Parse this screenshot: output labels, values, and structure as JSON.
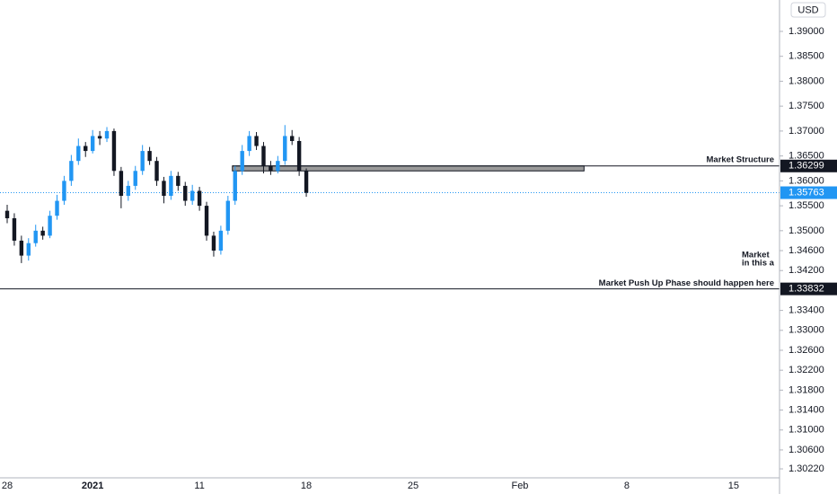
{
  "chart_data": {
    "type": "candlestick",
    "currency": "USD",
    "up_color": "#2196f3",
    "down_color": "#131722",
    "ylim": [
      1.3004,
      1.3963
    ],
    "yticks": [
      {
        "value": 1.39,
        "label": "1.39000"
      },
      {
        "value": 1.385,
        "label": "1.38500"
      },
      {
        "value": 1.38,
        "label": "1.38000"
      },
      {
        "value": 1.375,
        "label": "1.37500"
      },
      {
        "value": 1.37,
        "label": "1.37000"
      },
      {
        "value": 1.365,
        "label": "1.36500"
      },
      {
        "value": 1.36,
        "label": "1.36000"
      },
      {
        "value": 1.355,
        "label": "1.35500"
      },
      {
        "value": 1.35,
        "label": "1.35000"
      },
      {
        "value": 1.346,
        "label": "1.34600"
      },
      {
        "value": 1.342,
        "label": "1.34200"
      },
      {
        "value": 1.334,
        "label": "1.33400"
      },
      {
        "value": 1.33,
        "label": "1.33000"
      },
      {
        "value": 1.326,
        "label": "1.32600"
      },
      {
        "value": 1.322,
        "label": "1.32200"
      },
      {
        "value": 1.318,
        "label": "1.31800"
      },
      {
        "value": 1.314,
        "label": "1.31400"
      },
      {
        "value": 1.31,
        "label": "1.31000"
      },
      {
        "value": 1.306,
        "label": "1.30600"
      },
      {
        "value": 1.3022,
        "label": "1.30220"
      }
    ],
    "categories": [
      "28",
      null,
      null,
      null,
      null,
      null,
      null,
      null,
      null,
      null,
      null,
      null,
      "2021",
      null,
      null,
      null,
      null,
      null,
      null,
      null,
      null,
      null,
      null,
      null,
      null,
      null,
      null,
      "11",
      null,
      null,
      null,
      null,
      null,
      null,
      null,
      null,
      null,
      null,
      null,
      null,
      null,
      null,
      "18",
      null,
      null,
      null,
      null,
      null,
      null,
      null,
      null,
      null,
      null,
      null,
      null,
      null,
      null,
      "25",
      null,
      null,
      null,
      null,
      null,
      null,
      null,
      null,
      null,
      null,
      null,
      null,
      null,
      null,
      "Feb",
      null,
      null,
      null,
      null,
      null,
      null,
      null,
      null,
      null,
      null,
      null,
      null,
      null,
      null,
      "8",
      null,
      null,
      null,
      null,
      null,
      null,
      null,
      null,
      null,
      null,
      null,
      null,
      null,
      null,
      "15",
      null,
      null,
      null,
      null,
      null,
      null
    ],
    "open": [
      1.354,
      1.3525,
      1.348,
      1.345,
      1.3475,
      1.35,
      1.349,
      1.353,
      1.356,
      1.36,
      1.364,
      1.367,
      1.366,
      1.369,
      1.3685,
      1.37,
      1.362,
      1.357,
      1.359,
      1.362,
      1.366,
      1.364,
      1.36,
      1.357,
      1.361,
      1.359,
      1.356,
      1.358,
      1.355,
      1.349,
      1.346,
      1.35,
      1.356,
      1.362,
      1.366,
      1.369,
      1.367,
      1.363,
      1.362,
      1.364,
      1.369,
      1.368,
      1.362,
      null,
      null,
      null,
      null,
      null,
      null,
      null,
      null,
      null,
      null,
      null,
      null,
      null,
      null,
      null,
      null,
      null,
      null,
      null,
      null,
      null,
      null,
      null,
      null,
      null,
      null,
      null,
      null,
      null,
      null,
      null,
      null,
      null,
      null,
      null,
      null,
      null,
      null,
      null,
      null,
      null,
      null,
      null,
      null,
      null,
      null,
      null,
      null,
      null,
      null,
      null,
      null,
      null,
      null,
      null,
      null,
      null,
      null,
      null,
      null,
      null,
      null,
      null,
      null,
      null,
      null
    ],
    "high": [
      1.3552,
      1.3535,
      1.349,
      1.3485,
      1.3512,
      1.3508,
      1.354,
      1.3572,
      1.361,
      1.3652,
      1.3685,
      1.3678,
      1.3702,
      1.37,
      1.3708,
      1.3705,
      1.3628,
      1.36,
      1.363,
      1.3672,
      1.3668,
      1.3648,
      1.3608,
      1.362,
      1.3618,
      1.3598,
      1.3592,
      1.3588,
      1.3558,
      1.3498,
      1.351,
      1.357,
      1.363,
      1.3672,
      1.37,
      1.3698,
      1.3678,
      1.364,
      1.365,
      1.3712,
      1.3702,
      1.3688,
      1.3625,
      null,
      null,
      null,
      null,
      null,
      null,
      null,
      null,
      null,
      null,
      null,
      null,
      null,
      null,
      null,
      null,
      null,
      null,
      null,
      null,
      null,
      null,
      null,
      null,
      null,
      null,
      null,
      null,
      null,
      null,
      null,
      null,
      null,
      null,
      null,
      null,
      null,
      null,
      null,
      null,
      null,
      null,
      null,
      null,
      null,
      null,
      null,
      null,
      null,
      null,
      null,
      null,
      null,
      null,
      null,
      null,
      null,
      null,
      null,
      null,
      null,
      null,
      null,
      null,
      null,
      null
    ],
    "low": [
      1.3515,
      1.347,
      1.3435,
      1.344,
      1.3468,
      1.3482,
      1.3485,
      1.3522,
      1.3552,
      1.359,
      1.3632,
      1.3648,
      1.3655,
      1.3672,
      1.3678,
      1.361,
      1.3545,
      1.356,
      1.3582,
      1.3612,
      1.3632,
      1.359,
      1.3555,
      1.3562,
      1.358,
      1.355,
      1.3552,
      1.354,
      1.348,
      1.3448,
      1.3452,
      1.3492,
      1.3552,
      1.3612,
      1.365,
      1.3662,
      1.3615,
      1.3612,
      1.3615,
      1.3632,
      1.3672,
      1.361,
      1.3568,
      null,
      null,
      null,
      null,
      null,
      null,
      null,
      null,
      null,
      null,
      null,
      null,
      null,
      null,
      null,
      null,
      null,
      null,
      null,
      null,
      null,
      null,
      null,
      null,
      null,
      null,
      null,
      null,
      null,
      null,
      null,
      null,
      null,
      null,
      null,
      null,
      null,
      null,
      null,
      null,
      null,
      null,
      null,
      null,
      null,
      null,
      null,
      null,
      null,
      null,
      null,
      null,
      null,
      null,
      null,
      null,
      null,
      null,
      null,
      null,
      null,
      null,
      null,
      null,
      null,
      null
    ],
    "close": [
      1.3525,
      1.348,
      1.345,
      1.3475,
      1.35,
      1.349,
      1.353,
      1.356,
      1.36,
      1.364,
      1.367,
      1.366,
      1.369,
      1.3685,
      1.37,
      1.362,
      1.357,
      1.359,
      1.362,
      1.366,
      1.364,
      1.36,
      1.357,
      1.361,
      1.359,
      1.356,
      1.358,
      1.355,
      1.349,
      1.346,
      1.35,
      1.356,
      1.362,
      1.366,
      1.369,
      1.367,
      1.363,
      1.362,
      1.364,
      1.369,
      1.368,
      1.362,
      1.3576,
      null,
      null,
      null,
      null,
      null,
      null,
      null,
      null,
      null,
      null,
      null,
      null,
      null,
      null,
      null,
      null,
      null,
      null,
      null,
      null,
      null,
      null,
      null,
      null,
      null,
      null,
      null,
      null,
      null,
      null,
      null,
      null,
      null,
      null,
      null,
      null,
      null,
      null,
      null,
      null,
      null,
      null,
      null,
      null,
      null,
      null,
      null,
      null,
      null,
      null,
      null,
      null,
      null,
      null,
      null,
      null,
      null,
      null,
      null,
      null,
      null,
      null,
      null,
      null,
      null,
      null
    ],
    "zone": {
      "top": 1.363,
      "bottom": 1.362
    },
    "levels": [
      {
        "value": 1.36299,
        "label": "1.36299",
        "text": "Market Structure"
      },
      {
        "value": 1.33832,
        "label": "1.33832",
        "text": "Market Push Up Phase should happen here"
      }
    ],
    "last_price": {
      "value": 1.35763,
      "label": "1.35763",
      "color": "#2196f3"
    },
    "notes": [
      "Market",
      "in this a"
    ]
  }
}
